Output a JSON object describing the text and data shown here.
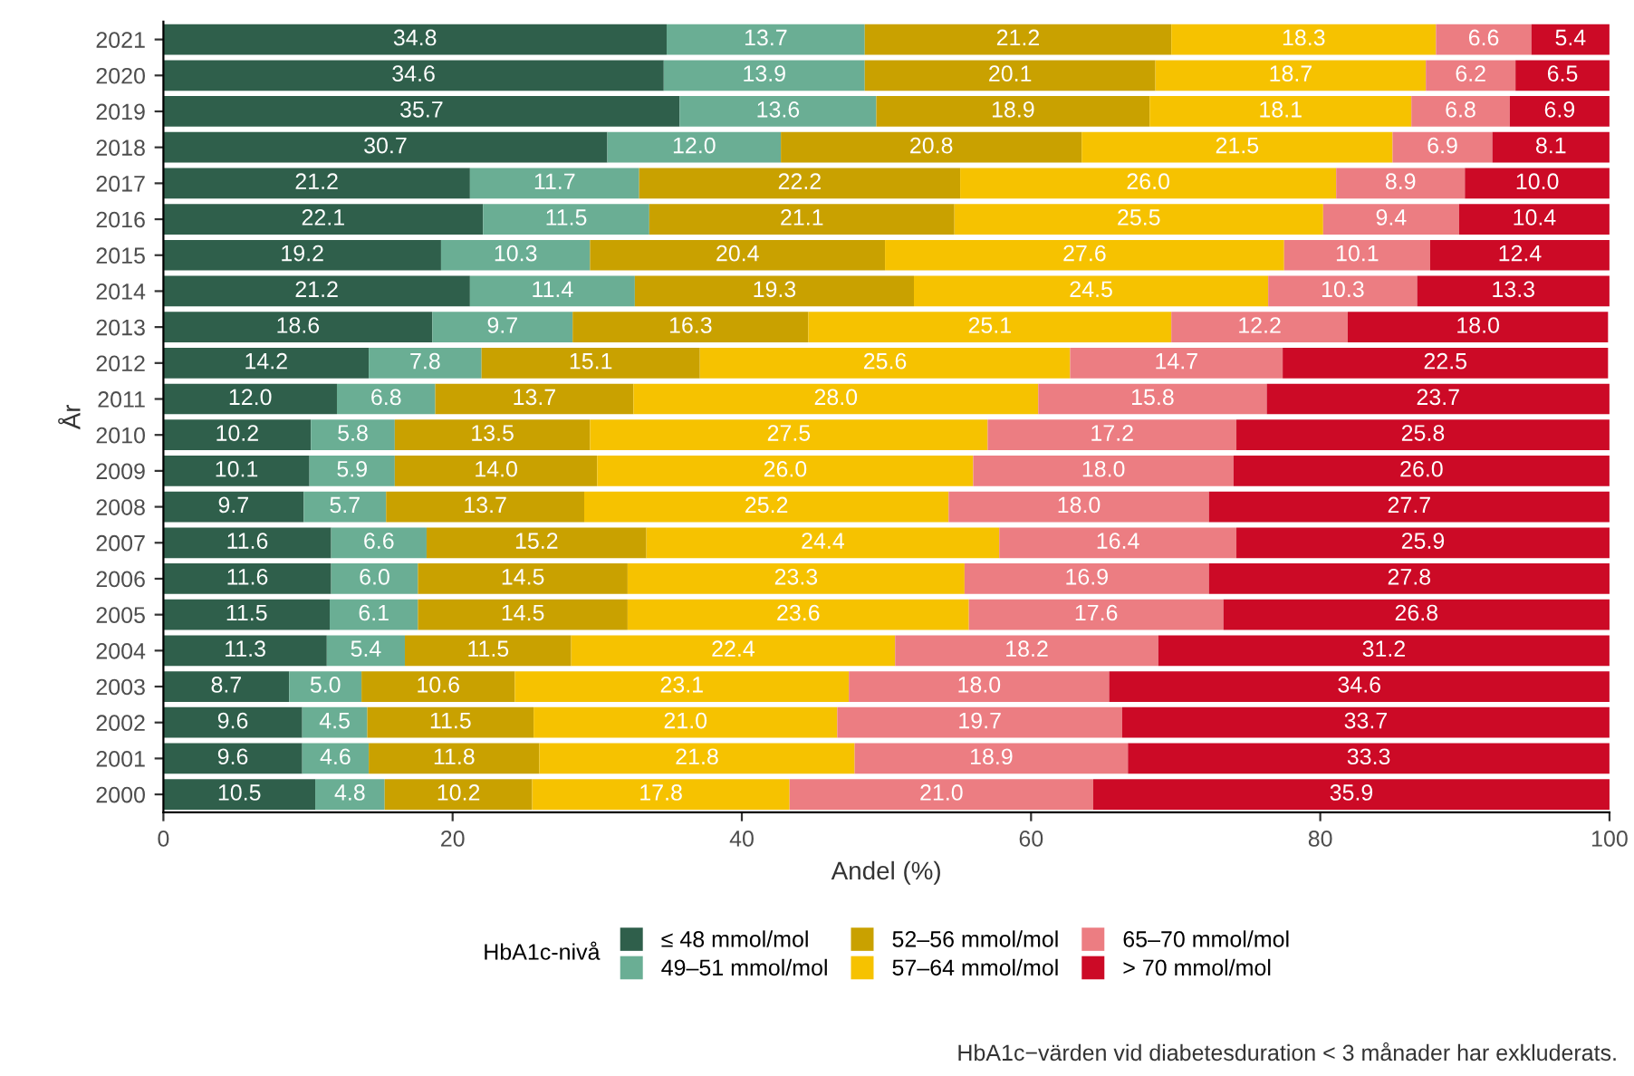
{
  "chart_data": {
    "type": "bar",
    "orientation": "horizontal",
    "stacked": true,
    "xlabel": "Andel (%)",
    "ylabel": "År",
    "legend_title": "HbA1c-nivå",
    "legend": "bottom",
    "categories": [
      "2021",
      "2020",
      "2019",
      "2018",
      "2017",
      "2016",
      "2015",
      "2014",
      "2013",
      "2012",
      "2011",
      "2010",
      "2009",
      "2008",
      "2007",
      "2006",
      "2005",
      "2004",
      "2003",
      "2002",
      "2001",
      "2000"
    ],
    "xlim": [
      0,
      100
    ],
    "xticks": [
      0,
      20,
      40,
      60,
      80,
      100
    ],
    "series": [
      {
        "name": "≤ 48 mmol/mol",
        "color": "#2f5f4b",
        "values": [
          34.8,
          34.6,
          35.7,
          30.7,
          21.2,
          22.1,
          19.2,
          21.2,
          18.6,
          14.2,
          12.0,
          10.2,
          10.1,
          9.7,
          11.6,
          11.6,
          11.5,
          11.3,
          8.7,
          9.6,
          9.6,
          10.5
        ],
        "value_labels": [
          "34.8",
          "34.6",
          "35.7",
          "30.7",
          "21.2",
          "22.1",
          "19.2",
          "21.2",
          "18.6",
          "14.2",
          "12.0",
          "10.2",
          "10.1",
          "9.7",
          "11.6",
          "11.6",
          "11.5",
          "11.3",
          "8.7",
          "9.6",
          "9.6",
          "10.5"
        ]
      },
      {
        "name": "49–51 mmol/mol",
        "color": "#6aae94",
        "values": [
          13.7,
          13.9,
          13.6,
          12.0,
          11.7,
          11.5,
          10.3,
          11.4,
          9.7,
          7.8,
          6.8,
          5.8,
          5.9,
          5.7,
          6.6,
          6.0,
          6.1,
          5.4,
          5.0,
          4.5,
          4.6,
          4.8
        ],
        "value_labels": [
          "13.7",
          "13.9",
          "13.6",
          "12.0",
          "11.7",
          "11.5",
          "10.3",
          "11.4",
          "9.7",
          "7.8",
          "6.8",
          "5.8",
          "5.9",
          "5.7",
          "6.6",
          "6.0",
          "6.1",
          "5.4",
          "5.0",
          "4.5",
          "4.6",
          "4.8"
        ]
      },
      {
        "name": "52–56 mmol/mol",
        "color": "#c9a100",
        "values": [
          21.2,
          20.1,
          18.9,
          20.8,
          22.2,
          21.1,
          20.4,
          19.3,
          16.3,
          15.1,
          13.7,
          13.5,
          14.0,
          13.7,
          15.2,
          14.5,
          14.5,
          11.5,
          10.6,
          11.5,
          11.8,
          10.2
        ],
        "value_labels": [
          "21.2",
          "20.1",
          "18.9",
          "20.8",
          "22.2",
          "21.1",
          "20.4",
          "19.3",
          "16.3",
          "15.1",
          "13.7",
          "13.5",
          "14.0",
          "13.7",
          "15.2",
          "14.5",
          "14.5",
          "11.5",
          "10.6",
          "11.5",
          "11.8",
          "10.2"
        ]
      },
      {
        "name": "57–64 mmol/mol",
        "color": "#f6c200",
        "values": [
          18.3,
          18.7,
          18.1,
          21.5,
          26.0,
          25.5,
          27.6,
          24.5,
          25.1,
          25.6,
          28.0,
          27.5,
          26.0,
          25.2,
          24.4,
          23.3,
          23.6,
          22.4,
          23.1,
          21.0,
          21.8,
          17.8
        ],
        "value_labels": [
          "18.3",
          "18.7",
          "18.1",
          "21.5",
          "26.0",
          "25.5",
          "27.6",
          "24.5",
          "25.1",
          "25.6",
          "28.0",
          "27.5",
          "26.0",
          "25.2",
          "24.4",
          "23.3",
          "23.6",
          "22.4",
          "23.1",
          "21.0",
          "21.8",
          "17.8"
        ]
      },
      {
        "name": "65–70 mmol/mol",
        "color": "#ec7d82",
        "values": [
          6.6,
          6.2,
          6.8,
          6.9,
          8.9,
          9.4,
          10.1,
          10.3,
          12.2,
          14.7,
          15.8,
          17.2,
          18.0,
          18.0,
          16.4,
          16.9,
          17.6,
          18.2,
          18.0,
          19.7,
          18.9,
          21.0
        ],
        "value_labels": [
          "6.6",
          "6.2",
          "6.8",
          "6.9",
          "8.9",
          "9.4",
          "10.1",
          "10.3",
          "12.2",
          "14.7",
          "15.8",
          "17.2",
          "18.0",
          "18.0",
          "16.4",
          "16.9",
          "17.6",
          "18.2",
          "18.0",
          "19.7",
          "18.9",
          "21.0"
        ]
      },
      {
        "name": "> 70 mmol/mol",
        "color": "#cc0a26",
        "values": [
          5.4,
          6.5,
          6.9,
          8.1,
          10.0,
          10.4,
          12.4,
          13.3,
          18.0,
          22.5,
          23.7,
          25.8,
          26.0,
          27.7,
          25.9,
          27.8,
          26.8,
          31.2,
          34.6,
          33.7,
          33.3,
          35.9
        ],
        "value_labels": [
          "5.4",
          "6.5",
          "6.9",
          "8.1",
          "10.0",
          "10.4",
          "12.4",
          "13.3",
          "18.0",
          "22.5",
          "23.7",
          "25.8",
          "26.0",
          "27.7",
          "25.9",
          "27.8",
          "26.8",
          "31.2",
          "34.6",
          "33.7",
          "33.3",
          "35.9"
        ]
      }
    ],
    "annotations": [
      "HbA1c−värden vid diabetesduration < 3 månader har exkluderats."
    ]
  }
}
